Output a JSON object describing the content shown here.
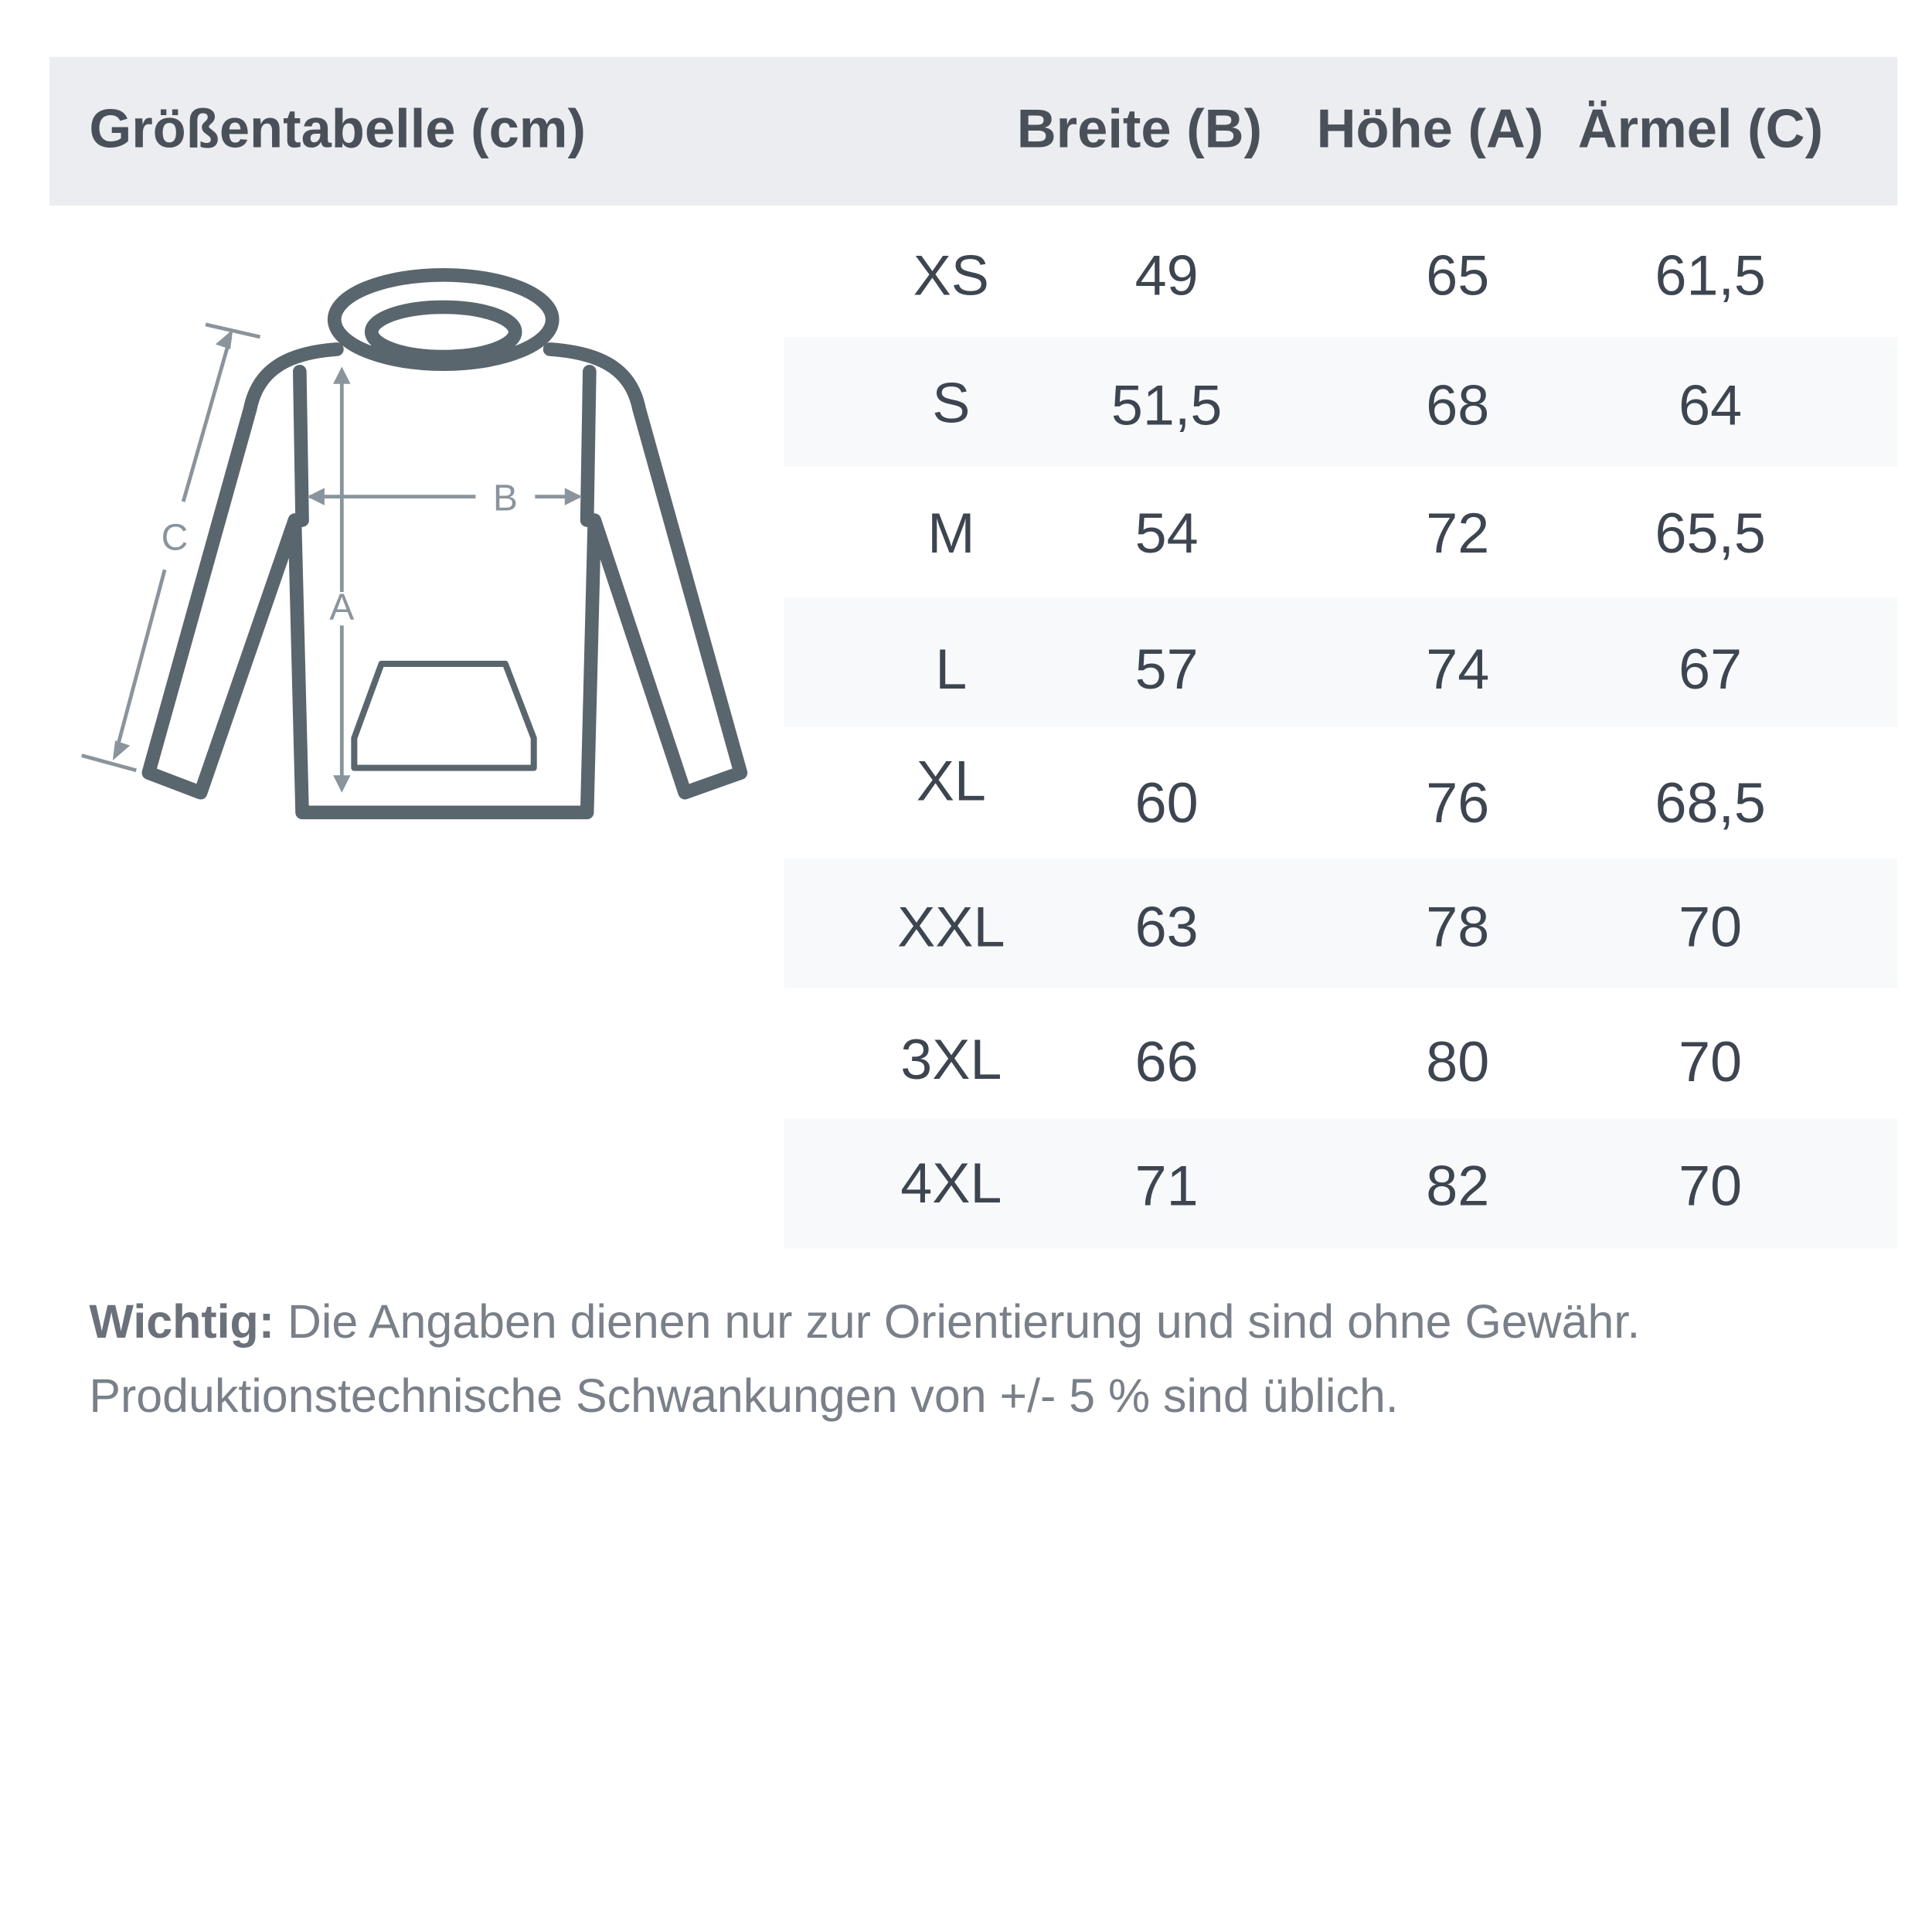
{
  "header": {
    "title": "Größentabelle (cm)",
    "columns": [
      "Breite (B)",
      "Höhe (A)",
      "Ärmel (C)"
    ]
  },
  "diagram": {
    "labels": {
      "a": "A",
      "b": "B",
      "c": "C"
    },
    "colors": {
      "outline": "#5a666d",
      "arrows": "#8a949c"
    }
  },
  "rows": [
    {
      "size": "XS",
      "breite": "49",
      "hoehe": "65",
      "aermel": "61,5"
    },
    {
      "size": "S",
      "breite": "51,5",
      "hoehe": "68",
      "aermel": "64"
    },
    {
      "size": "M",
      "breite": "54",
      "hoehe": "72",
      "aermel": "65,5"
    },
    {
      "size": "L",
      "breite": "57",
      "hoehe": "74",
      "aermel": "67"
    },
    {
      "size": "XL",
      "breite": "60",
      "hoehe": "76",
      "aermel": "68,5"
    },
    {
      "size": "XXL",
      "breite": "63",
      "hoehe": "78",
      "aermel": "70"
    },
    {
      "size": "3XL",
      "breite": "66",
      "hoehe": "80",
      "aermel": "70"
    },
    {
      "size": "4XL",
      "breite": "71",
      "hoehe": "82",
      "aermel": "70"
    }
  ],
  "note": {
    "bold": "Wichtig:",
    "line1": " Die Angaben dienen nur zur Orientierung und sind ohne Gewähr.",
    "line2": "Produktionstechnische Schwankungen von +/- 5 % sind üblich."
  }
}
